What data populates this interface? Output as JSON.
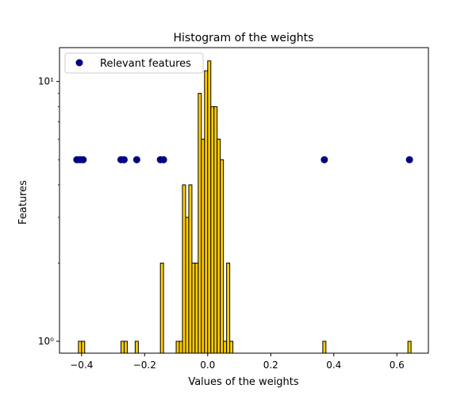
{
  "chart_data": {
    "type": "bar",
    "title": "Histogram of the weights",
    "xlabel": "Values of the weights",
    "ylabel": "Features",
    "yscale": "log",
    "xlim": [
      -0.47,
      0.7
    ],
    "ylim": [
      0.9,
      13.5
    ],
    "x_ticks": [
      -0.4,
      -0.2,
      0.0,
      0.2,
      0.4,
      0.6
    ],
    "x_tick_labels": [
      "−0.4",
      "−0.2",
      "0.0",
      "0.2",
      "0.4",
      "0.6"
    ],
    "y_ticks": [
      1,
      10
    ],
    "y_tick_labels": [
      "10⁰",
      "10¹"
    ],
    "histogram": {
      "color": "#ffcc00",
      "edgecolor": "#000000",
      "bins": [
        {
          "start": -0.41,
          "end": -0.4,
          "count": 1
        },
        {
          "start": -0.4,
          "end": -0.39,
          "count": 1
        },
        {
          "start": -0.275,
          "end": -0.265,
          "count": 1
        },
        {
          "start": -0.265,
          "end": -0.255,
          "count": 1
        },
        {
          "start": -0.23,
          "end": -0.22,
          "count": 1
        },
        {
          "start": -0.15,
          "end": -0.14,
          "count": 2
        },
        {
          "start": -0.1,
          "end": -0.09,
          "count": 1
        },
        {
          "start": -0.09,
          "end": -0.08,
          "count": 1
        },
        {
          "start": -0.08,
          "end": -0.07,
          "count": 4
        },
        {
          "start": -0.07,
          "end": -0.06,
          "count": 3
        },
        {
          "start": -0.06,
          "end": -0.05,
          "count": 4
        },
        {
          "start": -0.05,
          "end": -0.04,
          "count": 2
        },
        {
          "start": -0.04,
          "end": -0.03,
          "count": 2
        },
        {
          "start": -0.03,
          "end": -0.02,
          "count": 9
        },
        {
          "start": -0.02,
          "end": -0.01,
          "count": 6
        },
        {
          "start": -0.01,
          "end": 0.0,
          "count": 11
        },
        {
          "start": 0.0,
          "end": 0.01,
          "count": 12
        },
        {
          "start": 0.01,
          "end": 0.02,
          "count": 8
        },
        {
          "start": 0.02,
          "end": 0.03,
          "count": 8
        },
        {
          "start": 0.03,
          "end": 0.04,
          "count": 6
        },
        {
          "start": 0.04,
          "end": 0.05,
          "count": 5
        },
        {
          "start": 0.05,
          "end": 0.06,
          "count": 1
        },
        {
          "start": 0.06,
          "end": 0.07,
          "count": 2
        },
        {
          "start": 0.07,
          "end": 0.08,
          "count": 1
        },
        {
          "start": 0.365,
          "end": 0.375,
          "count": 1
        },
        {
          "start": 0.635,
          "end": 0.645,
          "count": 1
        }
      ]
    },
    "series": [
      {
        "name": "Relevant features",
        "type": "scatter",
        "color": "#000080",
        "x": [
          -0.415,
          -0.405,
          -0.395,
          -0.275,
          -0.265,
          -0.225,
          -0.15,
          -0.14,
          0.37,
          0.64
        ],
        "y": [
          5,
          5,
          5,
          5,
          5,
          5,
          5,
          5,
          5,
          5
        ]
      }
    ],
    "legend": {
      "position": "upper-left",
      "entries": [
        "Relevant features"
      ]
    }
  }
}
